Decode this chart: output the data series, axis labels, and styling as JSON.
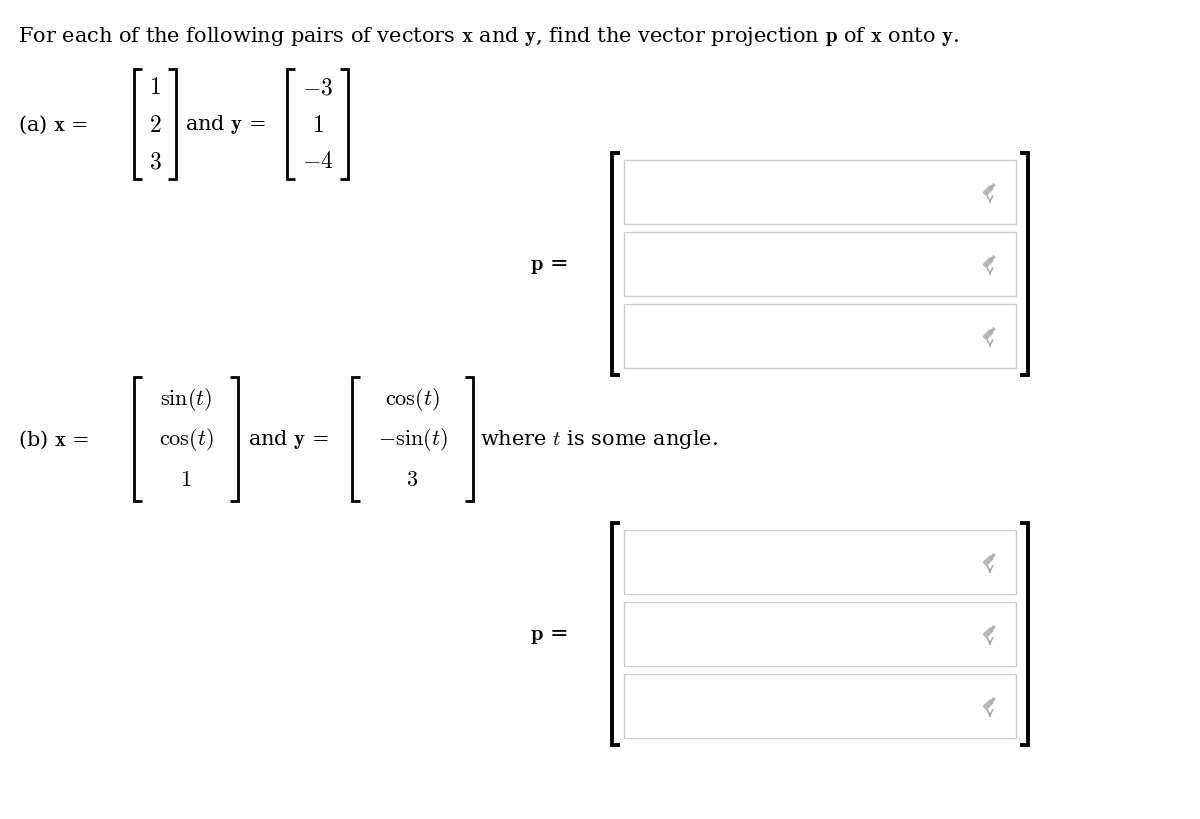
{
  "bg_color": "#ffffff",
  "text_color": "#000000",
  "bracket_color": "#000000",
  "input_box_facecolor": "#ffffff",
  "input_box_edgecolor": "#cccccc",
  "pencil_color": "#aaaaaa",
  "figure_width": 12.0,
  "figure_height": 8.2,
  "title": "For each of the following pairs of vectors $\\mathbf{x}$ and $\\mathbf{y}$, find the vector projection $\\mathbf{p}$ of $\\mathbf{x}$ onto $\\mathbf{y}$.",
  "part_a_x_values": [
    "1",
    "2",
    "3"
  ],
  "part_a_y_values": [
    "-3",
    "1",
    "-4"
  ],
  "part_b_x_values": [
    "\\sin(t)",
    "\\cos(t)",
    "1"
  ],
  "part_b_y_values": [
    "\\cos(t)",
    "-\\sin(t)",
    "3"
  ],
  "where_text": "where $t$ is some angle."
}
